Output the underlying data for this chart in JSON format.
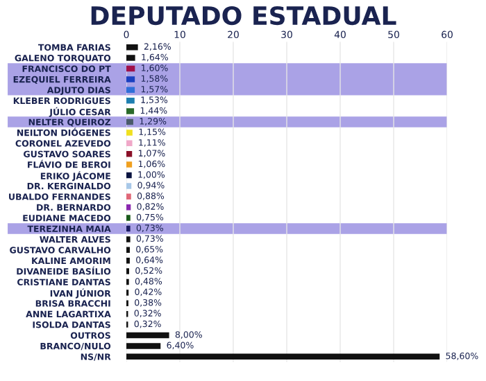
{
  "chart_data": {
    "type": "bar",
    "orientation": "horizontal",
    "title": "DEPUTADO ESTADUAL",
    "categories": [
      "TOMBA FARIAS",
      "GALENO TORQUATO",
      "FRANCISCO DO PT",
      "EZEQUIEL FERREIRA",
      "ADJUTO DIAS",
      "KLEBER RODRIGUES",
      "JÚLIO CESAR",
      "NELTER QUEIROZ",
      "NEILTON DIÓGENES",
      "CORONEL AZEVEDO",
      "GUSTAVO SOARES",
      "FLÁVIO DE BEROI",
      "ERIKO JÁCOME",
      "DR. KERGINALDO",
      "UBALDO FERNANDES",
      "DR. BERNARDO",
      "EUDIANE MACEDO",
      "TEREZINHA MAIA",
      "WALTER ALVES",
      "GUSTAVO CARVALHO",
      "KALINE AMORIM",
      "DIVANEIDE BASÍLIO",
      "CRISTIANE DANTAS",
      "IVAN JÚNIOR",
      "BRISA BRACCHI",
      "ANNE LAGARTIXA",
      "ISOLDA DANTAS",
      "OUTROS",
      "BRANCO/NULO",
      "NS/NR"
    ],
    "values": [
      2.16,
      1.64,
      1.6,
      1.58,
      1.57,
      1.53,
      1.44,
      1.29,
      1.15,
      1.11,
      1.07,
      1.06,
      1.0,
      0.94,
      0.88,
      0.82,
      0.75,
      0.73,
      0.73,
      0.65,
      0.64,
      0.52,
      0.48,
      0.42,
      0.38,
      0.32,
      0.32,
      8.0,
      6.4,
      58.6
    ],
    "value_labels": [
      "2,16%",
      "1,64%",
      "1,60%",
      "1,58%",
      "1,57%",
      "1,53%",
      "1,44%",
      "1,29%",
      "1,15%",
      "1,11%",
      "1,07%",
      "1,06%",
      "1,00%",
      "0,94%",
      "0,88%",
      "0,82%",
      "0,75%",
      "0,73%",
      "0,73%",
      "0,65%",
      "0,64%",
      "0,52%",
      "0,48%",
      "0,42%",
      "0,38%",
      "0,32%",
      "0,32%",
      "8,00%",
      "6,40%",
      "58,60%"
    ],
    "colors": [
      "#111111",
      "#111111",
      "#a0104a",
      "#1a3fc0",
      "#2f6fd8",
      "#1e7fb0",
      "#2a6a2a",
      "#4a5a6a",
      "#f0e020",
      "#f0a8c8",
      "#8a1028",
      "#f0a020",
      "#0a1440",
      "#a8c8e8",
      "#e06878",
      "#8a28b0",
      "#1a5a1a",
      "#1a1a60",
      "#111111",
      "#111111",
      "#111111",
      "#111111",
      "#111111",
      "#111111",
      "#111111",
      "#111111",
      "#111111",
      "#111111",
      "#111111",
      "#111111"
    ],
    "xlim": [
      0,
      60
    ],
    "xticks": [
      0,
      10,
      20,
      30,
      40,
      50,
      60
    ],
    "grid": "x",
    "bands": [
      {
        "axis": "y",
        "from": "FRANCISCO DO PT",
        "to": "ADJUTO DIAS",
        "color": "#aaa2e6"
      },
      {
        "axis": "y",
        "from": "NELTER QUEIROZ",
        "to": "NELTER QUEIROZ",
        "color": "#aaa2e6"
      },
      {
        "axis": "y",
        "from": "TEREZINHA MAIA",
        "to": "TEREZINHA MAIA",
        "color": "#aaa2e6"
      }
    ]
  }
}
